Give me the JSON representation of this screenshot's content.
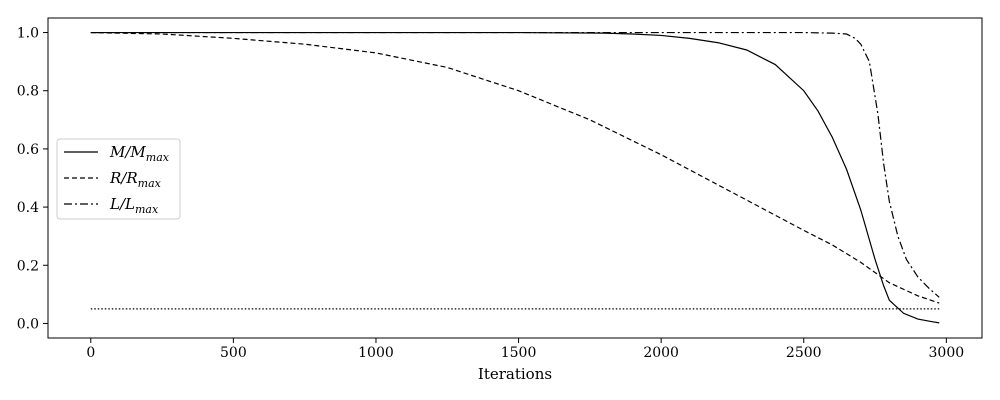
{
  "chart_data": {
    "type": "line",
    "xlabel": "Iterations",
    "ylabel": "",
    "title": "",
    "xlim": [
      -150,
      3125
    ],
    "ylim": [
      -0.05,
      1.05
    ],
    "xticks": [
      0,
      500,
      1000,
      1500,
      2000,
      2500,
      3000
    ],
    "yticks": [
      0.0,
      0.2,
      0.4,
      0.6,
      0.8,
      1.0
    ],
    "xtick_labels": [
      "0",
      "500",
      "1000",
      "1500",
      "2000",
      "2500",
      "3000"
    ],
    "ytick_labels": [
      "0.0",
      "0.2",
      "0.4",
      "0.6",
      "0.8",
      "1.0"
    ],
    "grid": false,
    "legend_position": "center-left",
    "series": [
      {
        "name_main": "M/M",
        "name_sub": "max",
        "style": "solid",
        "x": [
          0,
          500,
          1000,
          1500,
          1800,
          1900,
          2000,
          2100,
          2200,
          2300,
          2400,
          2500,
          2550,
          2600,
          2650,
          2700,
          2750,
          2780,
          2800,
          2850,
          2900,
          2950,
          2975
        ],
        "y": [
          1.0,
          1.0,
          1.0,
          1.0,
          0.998,
          0.995,
          0.99,
          0.98,
          0.965,
          0.94,
          0.89,
          0.8,
          0.73,
          0.64,
          0.53,
          0.39,
          0.22,
          0.13,
          0.08,
          0.035,
          0.015,
          0.006,
          0.002
        ]
      },
      {
        "name_main": "R/R",
        "name_sub": "max",
        "style": "dashed",
        "x": [
          0,
          250,
          500,
          750,
          1000,
          1250,
          1500,
          1750,
          2000,
          2250,
          2500,
          2600,
          2700,
          2800,
          2900,
          2975
        ],
        "y": [
          1.0,
          0.995,
          0.98,
          0.96,
          0.93,
          0.88,
          0.8,
          0.7,
          0.58,
          0.45,
          0.32,
          0.27,
          0.21,
          0.14,
          0.095,
          0.07
        ]
      },
      {
        "name_main": "L/L",
        "name_sub": "max",
        "style": "dashdot",
        "x": [
          0,
          1000,
          2000,
          2500,
          2600,
          2650,
          2680,
          2700,
          2730,
          2760,
          2780,
          2800,
          2830,
          2860,
          2900,
          2940,
          2975
        ],
        "y": [
          1.0,
          1.0,
          1.0,
          1.0,
          0.998,
          0.995,
          0.98,
          0.96,
          0.9,
          0.72,
          0.55,
          0.42,
          0.3,
          0.22,
          0.16,
          0.12,
          0.09
        ]
      },
      {
        "name_main": "",
        "name_sub": "",
        "style": "dotted",
        "legend": false,
        "x": [
          0,
          2975
        ],
        "y": [
          0.05,
          0.05
        ]
      }
    ]
  }
}
